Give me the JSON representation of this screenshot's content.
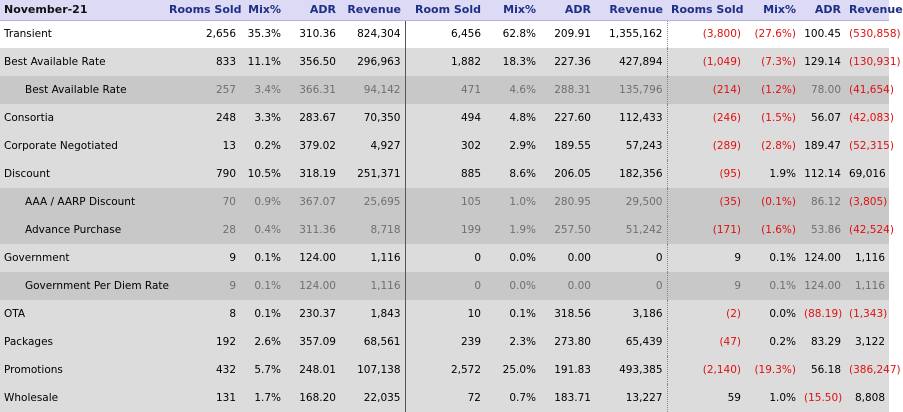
{
  "header": {
    "title": "November-21",
    "columns": [
      "Rooms Sold",
      "Mix%",
      "ADR",
      "Revenue",
      "Room Sold",
      "Mix%",
      "ADR",
      "Revenue",
      "Rooms Sold",
      "Mix%",
      "ADR",
      "Revenue"
    ]
  },
  "rows": [
    {
      "label": "Transient",
      "style": "white",
      "values": [
        "2,656",
        "35.3%",
        "310.36",
        "824,304",
        "6,456",
        "62.8%",
        "209.91",
        "1,355,162",
        "(3,800)",
        "(27.6%)",
        "100.45",
        "(530,858)"
      ]
    },
    {
      "label": "Best Available Rate",
      "style": "grey",
      "values": [
        "833",
        "11.1%",
        "356.50",
        "296,963",
        "1,882",
        "18.3%",
        "227.36",
        "427,894",
        "(1,049)",
        "(7.3%)",
        "129.14",
        "(130,931)"
      ]
    },
    {
      "label": "Best Available Rate",
      "style": "dark",
      "values": [
        "257",
        "3.4%",
        "366.31",
        "94,142",
        "471",
        "4.6%",
        "288.31",
        "135,796",
        "(214)",
        "(1.2%)",
        "78.00",
        "(41,654)"
      ]
    },
    {
      "label": "Consortia",
      "style": "grey",
      "values": [
        "248",
        "3.3%",
        "283.67",
        "70,350",
        "494",
        "4.8%",
        "227.60",
        "112,433",
        "(246)",
        "(1.5%)",
        "56.07",
        "(42,083)"
      ]
    },
    {
      "label": "Corporate Negotiated",
      "style": "grey",
      "values": [
        "13",
        "0.2%",
        "379.02",
        "4,927",
        "302",
        "2.9%",
        "189.55",
        "57,243",
        "(289)",
        "(2.8%)",
        "189.47",
        "(52,315)"
      ]
    },
    {
      "label": "Discount",
      "style": "grey",
      "values": [
        "790",
        "10.5%",
        "318.19",
        "251,371",
        "885",
        "8.6%",
        "206.05",
        "182,356",
        "(95)",
        "1.9%",
        "112.14",
        "69,016"
      ]
    },
    {
      "label": "AAA / AARP Discount",
      "style": "dark",
      "values": [
        "70",
        "0.9%",
        "367.07",
        "25,695",
        "105",
        "1.0%",
        "280.95",
        "29,500",
        "(35)",
        "(0.1%)",
        "86.12",
        "(3,805)"
      ]
    },
    {
      "label": "Advance Purchase",
      "style": "dark",
      "values": [
        "28",
        "0.4%",
        "311.36",
        "8,718",
        "199",
        "1.9%",
        "257.50",
        "51,242",
        "(171)",
        "(1.6%)",
        "53.86",
        "(42,524)"
      ]
    },
    {
      "label": "Government",
      "style": "grey",
      "values": [
        "9",
        "0.1%",
        "124.00",
        "1,116",
        "0",
        "0.0%",
        "0.00",
        "0",
        "9",
        "0.1%",
        "124.00",
        "1,116"
      ]
    },
    {
      "label": "Government Per Diem Rate",
      "style": "dark",
      "values": [
        "9",
        "0.1%",
        "124.00",
        "1,116",
        "0",
        "0.0%",
        "0.00",
        "0",
        "9",
        "0.1%",
        "124.00",
        "1,116"
      ]
    },
    {
      "label": "OTA",
      "style": "grey",
      "values": [
        "8",
        "0.1%",
        "230.37",
        "1,843",
        "10",
        "0.1%",
        "318.56",
        "3,186",
        "(2)",
        "0.0%",
        "(88.19)",
        "(1,343)"
      ]
    },
    {
      "label": "Packages",
      "style": "grey",
      "values": [
        "192",
        "2.6%",
        "357.09",
        "68,561",
        "239",
        "2.3%",
        "273.80",
        "65,439",
        "(47)",
        "0.2%",
        "83.29",
        "3,122"
      ]
    },
    {
      "label": "Promotions",
      "style": "grey",
      "values": [
        "432",
        "5.7%",
        "248.01",
        "107,138",
        "2,572",
        "25.0%",
        "191.83",
        "493,385",
        "(2,140)",
        "(19.3%)",
        "56.18",
        "(386,247)"
      ]
    },
    {
      "label": "Wholesale",
      "style": "grey",
      "values": [
        "131",
        "1.7%",
        "168.20",
        "22,035",
        "72",
        "0.7%",
        "183.71",
        "13,227",
        "59",
        "1.0%",
        "(15.50)",
        "8,808"
      ]
    }
  ],
  "colors": {
    "header_bg": "#dcdaf5",
    "header_text": "#1f2f86",
    "negative": "#e01010"
  }
}
